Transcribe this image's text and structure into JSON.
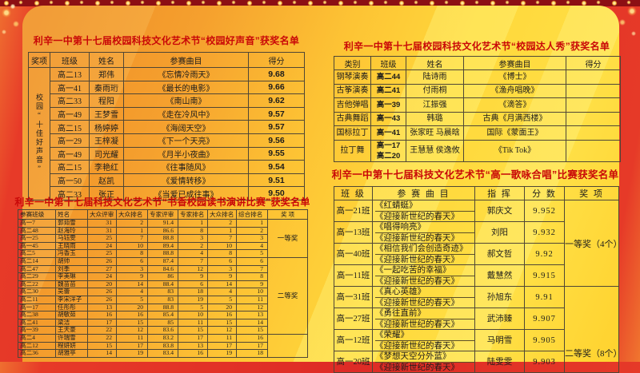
{
  "poster": {
    "colors": {
      "title_red": "#c90808",
      "panel_gold": "#ffd83b",
      "background_red": "#de2b26",
      "table_border": "#4f4636"
    },
    "sections": {
      "haosheng": {
        "title": "利辛一中第十七届校园科技文化艺术节“校园好声音”获奖名单",
        "columns": [
          "奖项",
          "班级",
          "姓名",
          "参赛曲目",
          "得分"
        ],
        "award_groups": [
          {
            "label": "校园“十佳好声音”",
            "span": 10
          }
        ],
        "rows": [
          [
            "高二13",
            "郑伟",
            "《忘情冷雨天》",
            "9.68"
          ],
          [
            "高一41",
            "秦雨珩",
            "《最长的电影》",
            "9.66"
          ],
          [
            "高二33",
            "程阳",
            "《南山南》",
            "9.62"
          ],
          [
            "高一49",
            "王梦雪",
            "《走在冷风中》",
            "9.57"
          ],
          [
            "高二15",
            "杨婷婷",
            "《海阔天空》",
            "9.57"
          ],
          [
            "高一29",
            "王梓凝",
            "《下一个天亮》",
            "9.56"
          ],
          [
            "高一49",
            "司光耀",
            "《月半小夜曲》",
            "9.55"
          ],
          [
            "高二15",
            "李艳红",
            "《往事随风》",
            "9.54"
          ],
          [
            "高一50",
            "赵凯",
            "《爱情转移》",
            "9.51"
          ],
          [
            "高二33",
            "张正",
            "《当爱已成往事》",
            "9.50"
          ]
        ]
      },
      "yanjiang": {
        "title": "利辛一中第十七届科技文化艺术节“书香校园读书演讲比赛”获奖名单",
        "columns": [
          "参赛班级",
          "姓名",
          "大众评审",
          "大众排名",
          "专家评审",
          "专家排名",
          "大众排名",
          "综合排名",
          "奖 项"
        ],
        "award_groups": [
          {
            "label": "一等奖",
            "span": 5
          },
          {
            "label": "二等奖",
            "span": 10
          },
          {
            "label": "",
            "span": 3
          }
        ],
        "rows": [
          [
            "高一7",
            "郭茹雪",
            "31",
            "2",
            "91.4",
            "1",
            "2",
            "1"
          ],
          [
            "高二48",
            "赵海玲",
            "31",
            "1",
            "86.6",
            "8",
            "1",
            "2"
          ],
          [
            "高一25",
            "马钰雯",
            "25",
            "7",
            "88.8",
            "3",
            "7",
            "3"
          ],
          [
            "高一45",
            "王晓雨",
            "24",
            "10",
            "89.4",
            "2",
            "10",
            "4"
          ],
          [
            "高二5",
            "冯香玉",
            "25",
            "8",
            "88.8",
            "4",
            "8",
            "5"
          ],
          [
            "高二14",
            "胡帅",
            "26",
            "6",
            "87.4",
            "7",
            "6",
            "6"
          ],
          [
            "高二47",
            "刘季",
            "27",
            "3",
            "84.6",
            "12",
            "3",
            "7"
          ],
          [
            "高二29",
            "李美琳",
            "24",
            "9",
            "86",
            "9",
            "9",
            "8"
          ],
          [
            "高二22",
            "魏苗苗",
            "20",
            "14",
            "88.4",
            "6",
            "14",
            "9"
          ],
          [
            "高二30",
            "吴蕾",
            "26",
            "4",
            "83",
            "18",
            "4",
            "10"
          ],
          [
            "高二11",
            "李宋洋子",
            "26",
            "5",
            "83",
            "19",
            "5",
            "11"
          ],
          [
            "高一17",
            "任彤彤",
            "13",
            "20",
            "88.8",
            "5",
            "20",
            "12"
          ],
          [
            "高二38",
            "胡敏茹",
            "16",
            "16",
            "85.4",
            "10",
            "16",
            "13"
          ],
          [
            "高二41",
            "梁洁",
            "17",
            "15",
            "85",
            "11",
            "15",
            "14"
          ],
          [
            "高一39",
            "王天豪",
            "22",
            "12",
            "83.6",
            "15",
            "12",
            "15"
          ],
          [
            "高二4",
            "许瑞雪",
            "22",
            "11",
            "83.2",
            "17",
            "11",
            "16"
          ],
          [
            "高二12",
            "程妍妍",
            "15",
            "17",
            "83.8",
            "13",
            "17",
            "17"
          ],
          [
            "高二36",
            "胡雅亭",
            "14",
            "19",
            "83.4",
            "16",
            "19",
            "18"
          ]
        ]
      },
      "daren": {
        "title": "利辛一中第十七届校园科技文化艺术节“校园达人秀”获奖名单",
        "columns": [
          "类别",
          "班级",
          "姓名",
          "参赛曲目",
          "得分"
        ],
        "rows": [
          [
            "钢琴演奏",
            "高二44",
            "陆诗雨",
            "《博士》",
            ""
          ],
          [
            "古筝演奏",
            "高二41",
            "付雨桐",
            "《渔舟唱晚》",
            ""
          ],
          [
            "吉他弹唱",
            "高一39",
            "江振强",
            "《滴答》",
            ""
          ],
          [
            "古典舞蹈",
            "高一43",
            "韩璐",
            "古典《月满西楼》",
            ""
          ],
          [
            "国标拉丁",
            "高一41",
            "张家旺 马晨晗",
            "国际《蒙面王》",
            ""
          ],
          [
            "拉丁舞",
            "高一17\n高二20",
            "王慧慧 侯逸攸",
            "《Tik Tok》",
            ""
          ]
        ]
      },
      "geyong": {
        "title": "利辛一中第十七届科技文化艺术节“高一歌咏合唱”比赛获奖名单",
        "columns": [
          "班 级",
          "参 赛 曲 目",
          "指 挥",
          "分 数",
          "奖 项"
        ],
        "award_groups": [
          {
            "label": "一等奖（4个）",
            "span": 4
          },
          {
            "label": "二等奖（8个）",
            "span": 4
          }
        ],
        "rows": [
          [
            "高一21班",
            "《红蜻蜓》\n《迎接新世纪的春天》",
            "郭庆文",
            "9.952"
          ],
          [
            "高一13班",
            "《唱得响亮》\n《迎接新世纪的春天》",
            "刘阳",
            "9.932"
          ],
          [
            "高一40班",
            "《相信我们会创造奇迹》\n《迎接新世纪的春天》",
            "郝文哲",
            "9.92"
          ],
          [
            "高一11班",
            "《一起吃苦的幸福》\n《迎接新世纪的春天》",
            "戴慧然",
            "9.915"
          ],
          [
            "高一31班",
            "《真心英雄》\n《迎接新世纪的春天》",
            "孙旭东",
            "9.91"
          ],
          [
            "高一27班",
            "《勇往直前》\n《迎接新世纪的春天》",
            "武沛臻",
            "9.907"
          ],
          [
            "高一12班",
            "《荣耀》\n《迎接新世纪的春天》",
            "马明雪",
            "9.905"
          ],
          [
            "高一20班",
            "《梦想天空分外蓝》\n《迎接新世纪的春天》",
            "陆雯雯",
            "9.903"
          ]
        ]
      }
    }
  }
}
